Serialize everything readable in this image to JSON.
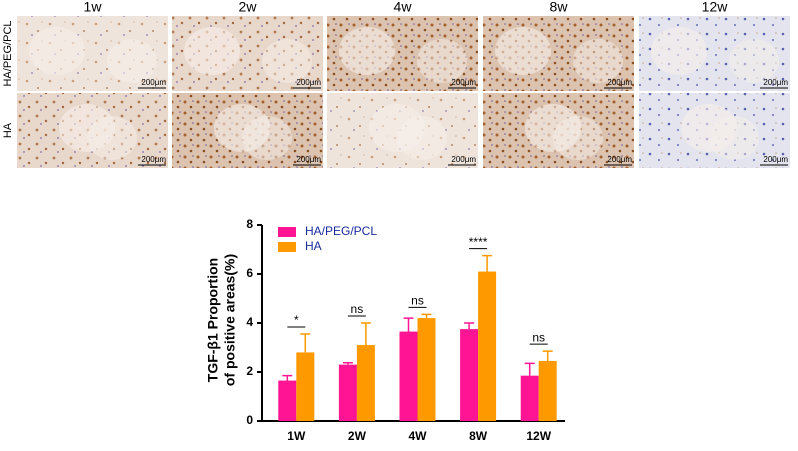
{
  "image_grid": {
    "columns": [
      "1w",
      "2w",
      "4w",
      "8w",
      "12w"
    ],
    "rows": [
      "HA/PEG/PCL",
      "HA"
    ],
    "scale_bar": "200μm"
  },
  "chart_data": {
    "type": "bar",
    "y_label": [
      "TGF-β1 Proportion",
      "of positive areas(%)"
    ],
    "categories": [
      "1W",
      "2W",
      "4W",
      "8W",
      "12W"
    ],
    "series": [
      {
        "name": "HA/PEG/PCL",
        "color": "#ff1493",
        "values": [
          1.65,
          2.3,
          3.65,
          3.75,
          1.85
        ],
        "errors": [
          0.2,
          0.08,
          0.55,
          0.25,
          0.5
        ]
      },
      {
        "name": "HA",
        "color": "#ff9900",
        "values": [
          2.8,
          3.1,
          4.2,
          6.1,
          2.45
        ],
        "errors": [
          0.75,
          0.9,
          0.15,
          0.65,
          0.4
        ]
      }
    ],
    "significance": [
      "*",
      "ns",
      "ns",
      "****",
      "ns"
    ],
    "ylim": [
      0,
      8
    ],
    "yticks": [
      0,
      2,
      4,
      6,
      8
    ],
    "legend": "upper-left"
  }
}
